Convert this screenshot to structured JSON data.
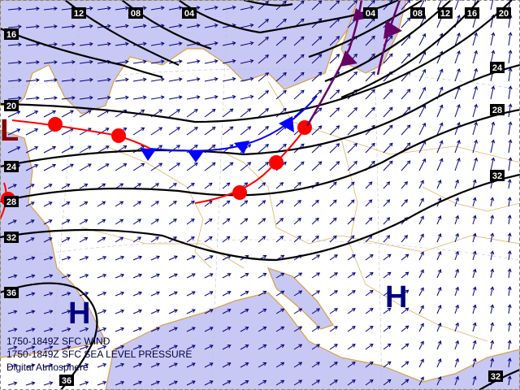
{
  "colors": {
    "sea": "#c8c8f4",
    "land": "#ffffff",
    "coast": "#d8a040",
    "isobar": "#000000",
    "wind": "#000080",
    "warm_front": "#ff0000",
    "cold_front": "#0000ff",
    "occluded_front": "#660066",
    "pressure_center": "#000080",
    "low_center": "#880000"
  },
  "isobar_labels": {
    "top": [
      "12",
      "08",
      "04",
      "04",
      "08",
      "12",
      "16",
      "20"
    ],
    "left": [
      "16",
      "20",
      "24",
      "28",
      "32",
      "36"
    ],
    "right": [
      "24",
      "28",
      "32"
    ],
    "bottom": [
      "36",
      "32"
    ]
  },
  "pressure_centers": {
    "low": "L",
    "high_west": "H",
    "high_east": "H"
  },
  "captions": {
    "line1": "1750-1849Z SFC WIND",
    "line2": "1750-1849Z SFC SEA LEVEL PRESSURE",
    "line3": "Digital Atmosphere"
  },
  "icons": {
    "wind": "wind-arrow-icon",
    "warm_front": "semicircle-front-icon",
    "cold_front": "triangle-front-icon"
  }
}
